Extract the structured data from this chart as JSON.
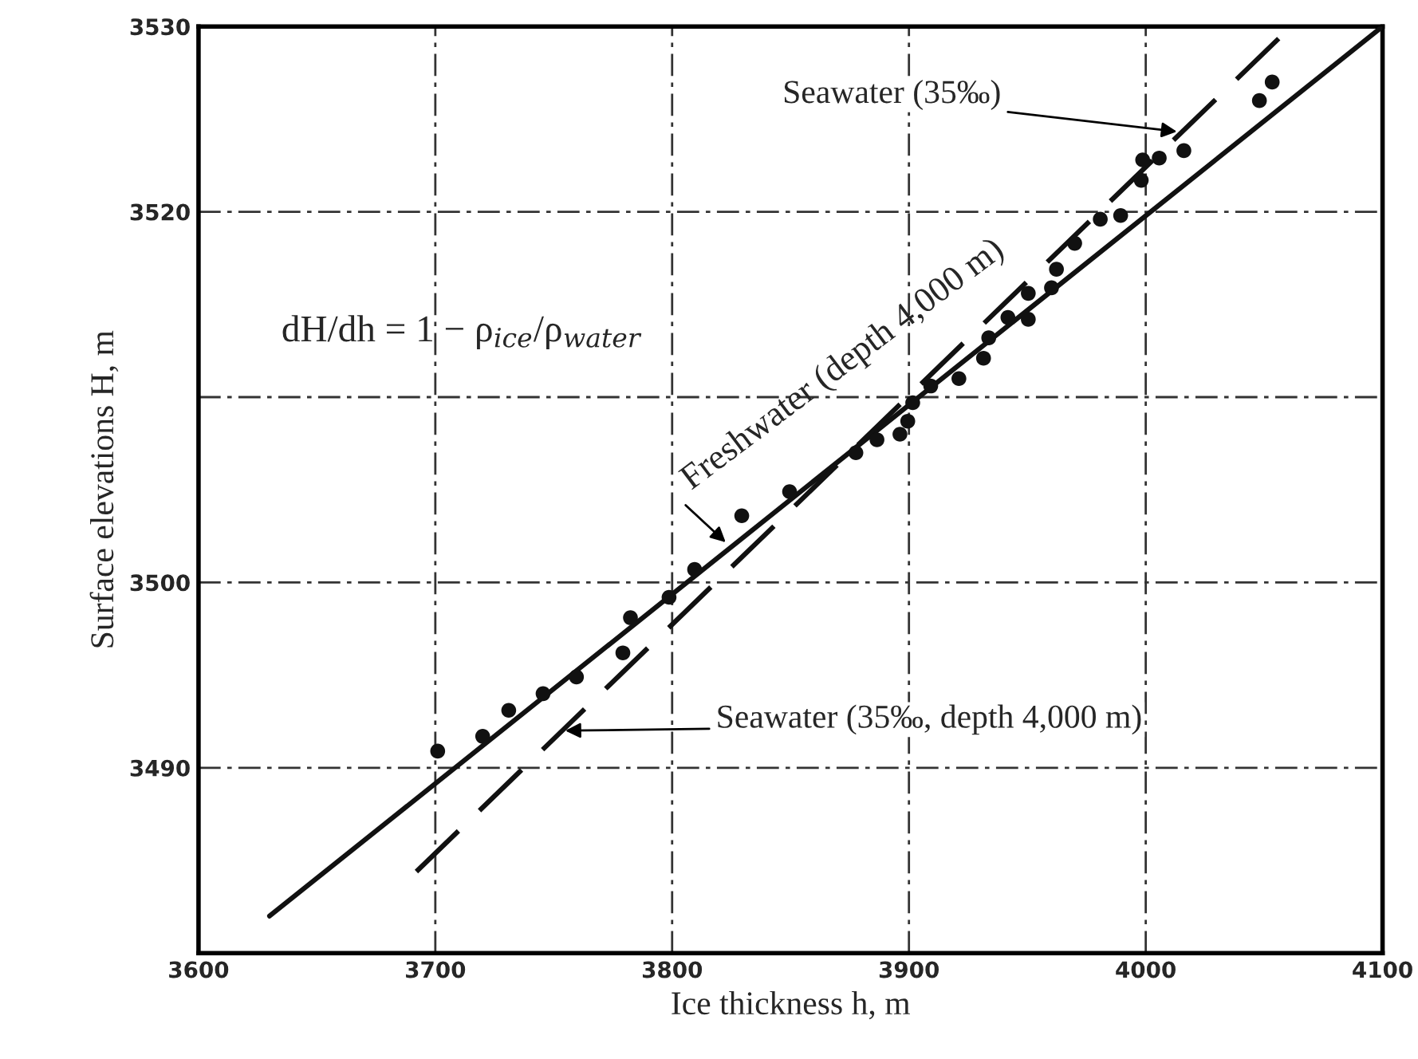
{
  "chart_data": {
    "type": "scatter",
    "xlabel": "Ice thickness h, m",
    "ylabel": "Surface elevations H, m",
    "xlim": [
      3600,
      4100
    ],
    "ylim": [
      3480,
      3530
    ],
    "xticks": [
      3600,
      3700,
      3800,
      3900,
      4000,
      4100
    ],
    "yticks": [
      3490,
      3500,
      {
        "value": 3510,
        "label": null
      },
      3520,
      3530
    ],
    "grid": true,
    "legend": false,
    "series": [
      {
        "color": "#111111",
        "marker": "circle",
        "x": [
          3701,
          3720,
          3731,
          3745.5,
          3759.6,
          3779.2,
          3782.4,
          3798.7,
          3809.5,
          3829.4,
          3849.6,
          3877.6,
          3886.5,
          3896.2,
          3899.5,
          3901.6,
          3909.2,
          3921.1,
          3931.5,
          3933.7,
          3941.8,
          3950.4,
          3950.4,
          3960.2,
          3962.3,
          3970,
          3980.8,
          3989.4,
          3998.1,
          3998.7,
          4005.7,
          4016.1,
          4048,
          4053.4
        ],
        "values": [
          3490.9,
          3491.7,
          3493.1,
          3494.0,
          3494.9,
          3496.2,
          3498.1,
          3499.2,
          3500.7,
          3503.6,
          3504.9,
          3507.0,
          3507.7,
          3508.0,
          3508.7,
          3509.7,
          3510.6,
          3511.0,
          3512.1,
          3513.2,
          3514.3,
          3514.2,
          3515.6,
          3515.9,
          3516.9,
          3518.3,
          3519.6,
          3519.8,
          3521.7,
          3522.8,
          3522.9,
          3523.3,
          3526.0,
          3527.0
        ]
      },
      {
        "type": "line",
        "color": "#111111",
        "line_style": "solid",
        "x": [
          3630,
          4100
        ],
        "values": [
          3482,
          3530
        ]
      },
      {
        "type": "line",
        "color": "#111111",
        "line_style": "dashed",
        "x": [
          3692,
          4059
        ],
        "values": [
          3484.4,
          3529.7
        ]
      }
    ],
    "annotations": [
      {
        "text": "dH/dh = 1 − ρ$_{ice}$/ρ$_{water}$"
      },
      {
        "text": "Freshwater (depth 4,000 m)",
        "x": 3824,
        "y": 3502
      },
      {
        "text": "Seawater (35‰)",
        "x": 4015,
        "y": 3524.3
      },
      {
        "text": "Seawater (35‰, depth 4,000 m)",
        "x": 3753,
        "y": 3492
      }
    ]
  }
}
